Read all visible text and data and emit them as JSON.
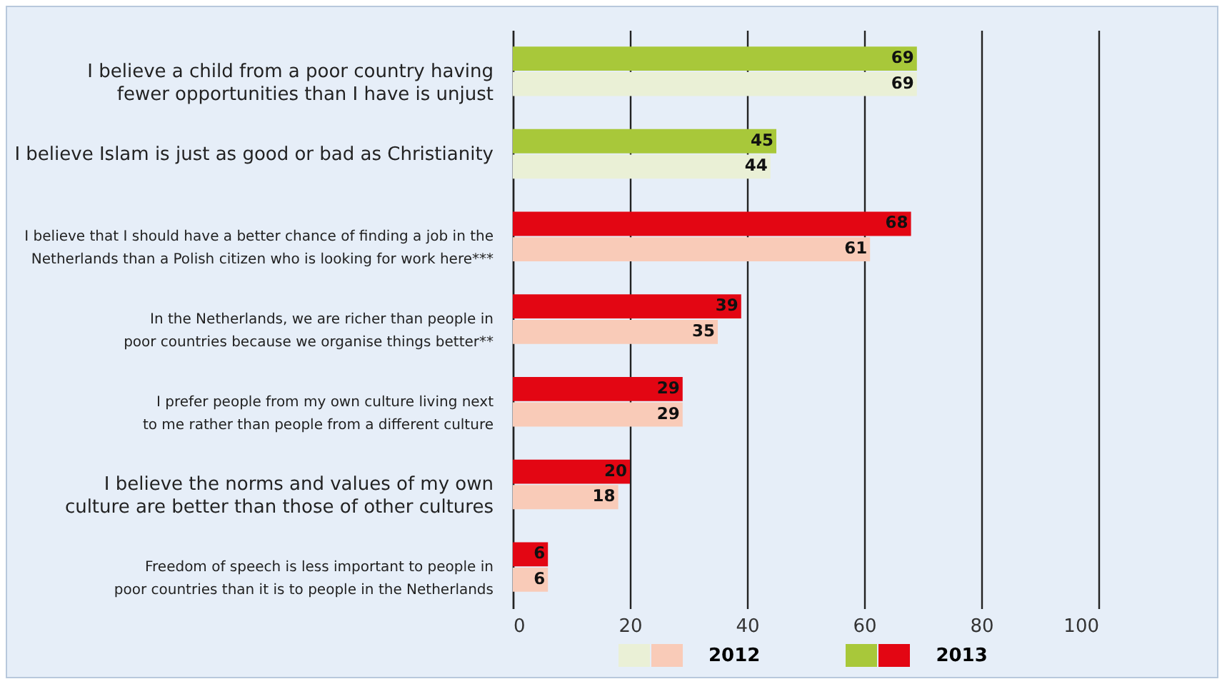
{
  "chart_data": {
    "type": "bar",
    "orientation": "horizontal",
    "categories": [
      "I believe a child from a poor country having\nfewer opportunities than I have is unjust",
      "I believe Islam is just as good or bad as Christianity",
      "I believe that I should have a better chance of finding a job in the\nNetherlands than a Polish citizen who is looking for work here***",
      "In the Netherlands, we are richer than people in\npoor countries because we organise things better**",
      "I prefer people from my own culture living next\nto me rather than people from a different culture",
      "I believe the norms and values of my own\nculture are better than those of other cultures",
      "Freedom of speech is less important to people in\npoor countries than it is to people in the Netherlands"
    ],
    "series": [
      {
        "name": "2013",
        "colors": [
          "#a8c83a",
          "#a8c83a",
          "#e30613",
          "#e30613",
          "#e30613",
          "#e30613",
          "#e30613"
        ],
        "values": [
          69,
          45,
          68,
          39,
          29,
          20,
          6
        ]
      },
      {
        "name": "2012",
        "colors": [
          "#eaf0d6",
          "#eaf0d6",
          "#f9cbb8",
          "#f9cbb8",
          "#f9cbb8",
          "#f9cbb8",
          "#f9cbb8"
        ],
        "values": [
          69,
          44,
          61,
          35,
          29,
          18,
          6
        ]
      }
    ],
    "xlim": [
      0,
      100
    ],
    "xticks": [
      0,
      20,
      40,
      60,
      80,
      100
    ],
    "grid": "x",
    "data_labels": true,
    "legend": "bottom"
  }
}
